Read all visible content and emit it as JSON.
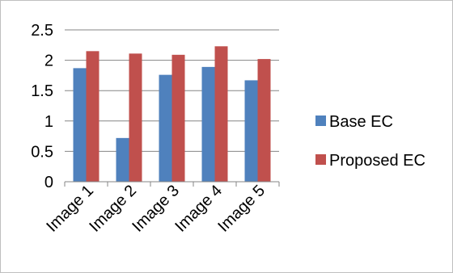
{
  "chart_data": {
    "type": "bar",
    "title": "",
    "xlabel": "",
    "ylabel": "",
    "categories": [
      "Image 1",
      "Image 2",
      "Image 3",
      "Image 4",
      "Image 5"
    ],
    "series": [
      {
        "name": "Base EC",
        "color": "#4F81BD",
        "values": [
          1.87,
          0.72,
          1.76,
          1.89,
          1.67
        ]
      },
      {
        "name": "Proposed EC",
        "color": "#C0504D",
        "values": [
          2.15,
          2.11,
          2.09,
          2.23,
          2.02
        ]
      }
    ],
    "ylim": [
      0,
      2.5
    ],
    "yticks": [
      0,
      0.5,
      1,
      1.5,
      2,
      2.5
    ],
    "ytick_labels": [
      "0",
      "0.5",
      "1",
      "1.5",
      "2",
      "2.5"
    ],
    "grid": true,
    "legend_position": "right"
  }
}
